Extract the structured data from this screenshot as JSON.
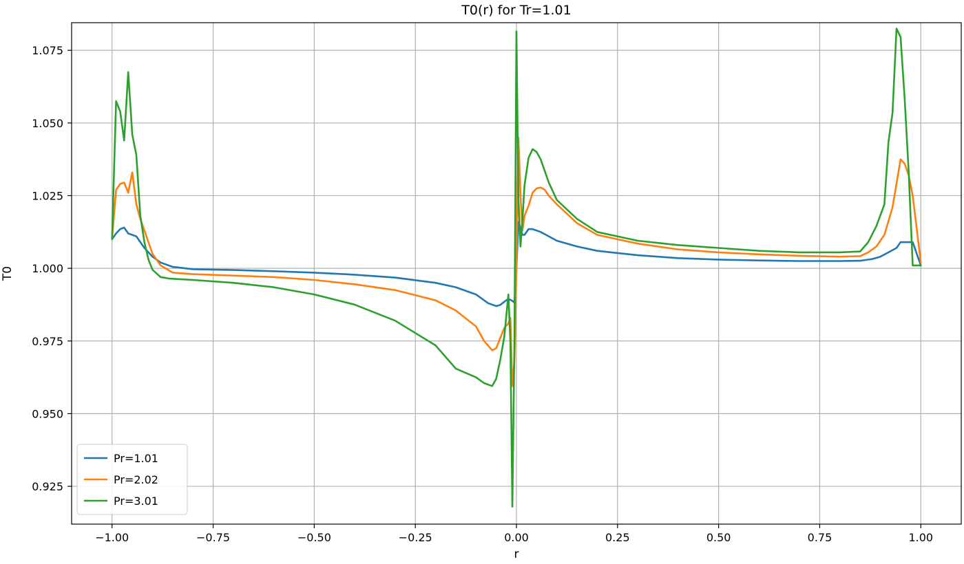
{
  "chart_data": {
    "type": "line",
    "title": "T0(r) for Tr=1.01",
    "xlabel": "r",
    "ylabel": "T0",
    "xlim": [
      -1.1,
      1.1
    ],
    "ylim": [
      0.912,
      1.0845
    ],
    "xticks": [
      -1.0,
      -0.75,
      -0.5,
      -0.25,
      0.0,
      0.25,
      0.5,
      0.75,
      1.0
    ],
    "xtick_labels": [
      "−1.00",
      "−0.75",
      "−0.50",
      "−0.25",
      "0.00",
      "0.25",
      "0.50",
      "0.75",
      "1.00"
    ],
    "yticks": [
      0.925,
      0.95,
      0.975,
      1.0,
      1.025,
      1.05,
      1.075
    ],
    "ytick_labels": [
      "0.925",
      "0.950",
      "0.975",
      "1.000",
      "1.025",
      "1.050",
      "1.075"
    ],
    "grid": true,
    "legend_position": "lower-left",
    "series": [
      {
        "name": "Pr=1.01",
        "color": "#1f77b4",
        "x": [
          -1.0,
          -0.99,
          -0.98,
          -0.97,
          -0.96,
          -0.95,
          -0.94,
          -0.92,
          -0.9,
          -0.88,
          -0.85,
          -0.8,
          -0.7,
          -0.6,
          -0.5,
          -0.4,
          -0.3,
          -0.2,
          -0.15,
          -0.1,
          -0.07,
          -0.05,
          -0.04,
          -0.03,
          -0.02,
          -0.01,
          -0.005,
          0.0,
          0.005,
          0.01,
          0.015,
          0.02,
          0.03,
          0.04,
          0.05,
          0.06,
          0.08,
          0.1,
          0.15,
          0.2,
          0.3,
          0.4,
          0.5,
          0.6,
          0.7,
          0.8,
          0.85,
          0.88,
          0.9,
          0.92,
          0.94,
          0.95,
          0.96,
          0.97,
          0.98,
          1.0
        ],
        "y": [
          1.01,
          1.012,
          1.0135,
          1.014,
          1.012,
          1.0115,
          1.011,
          1.007,
          1.004,
          1.002,
          1.0005,
          0.9997,
          0.9994,
          0.999,
          0.9985,
          0.9978,
          0.9968,
          0.995,
          0.9935,
          0.991,
          0.988,
          0.987,
          0.9874,
          0.9885,
          0.9895,
          0.9888,
          0.9882,
          1.0,
          1.016,
          1.014,
          1.0115,
          1.0115,
          1.0135,
          1.0135,
          1.013,
          1.0125,
          1.011,
          1.0095,
          1.0075,
          1.006,
          1.0045,
          1.0035,
          1.003,
          1.0027,
          1.0025,
          1.0025,
          1.0026,
          1.0032,
          1.004,
          1.0055,
          1.007,
          1.009,
          1.009,
          1.009,
          1.009,
          1.001
        ]
      },
      {
        "name": "Pr=2.02",
        "color": "#ff7f0e",
        "x": [
          -1.0,
          -0.99,
          -0.98,
          -0.97,
          -0.96,
          -0.95,
          -0.94,
          -0.93,
          -0.92,
          -0.9,
          -0.88,
          -0.85,
          -0.8,
          -0.7,
          -0.6,
          -0.5,
          -0.4,
          -0.3,
          -0.2,
          -0.15,
          -0.1,
          -0.08,
          -0.06,
          -0.05,
          -0.04,
          -0.03,
          -0.02,
          -0.015,
          -0.01,
          -0.005,
          0.0,
          0.005,
          0.01,
          0.015,
          0.02,
          0.03,
          0.04,
          0.05,
          0.06,
          0.07,
          0.08,
          0.1,
          0.15,
          0.2,
          0.3,
          0.4,
          0.5,
          0.6,
          0.7,
          0.8,
          0.85,
          0.87,
          0.89,
          0.91,
          0.93,
          0.95,
          0.96,
          0.97,
          0.98,
          1.0
        ],
        "y": [
          1.01,
          1.027,
          1.029,
          1.0295,
          1.026,
          1.033,
          1.022,
          1.017,
          1.013,
          1.005,
          1.001,
          0.9985,
          0.998,
          0.9975,
          0.997,
          0.996,
          0.9945,
          0.9925,
          0.989,
          0.9855,
          0.98,
          0.975,
          0.9718,
          0.9725,
          0.976,
          0.9795,
          0.981,
          0.983,
          0.9595,
          0.968,
          1.0,
          1.045,
          1.025,
          1.013,
          1.018,
          1.0215,
          1.026,
          1.0275,
          1.0278,
          1.027,
          1.025,
          1.022,
          1.0155,
          1.0115,
          1.0085,
          1.0065,
          1.0055,
          1.0048,
          1.0043,
          1.004,
          1.0042,
          1.0055,
          1.0075,
          1.0115,
          1.021,
          1.0375,
          1.036,
          1.032,
          1.025,
          1.002
        ]
      },
      {
        "name": "Pr=3.01",
        "color": "#2ca02c",
        "x": [
          -1.0,
          -0.99,
          -0.98,
          -0.97,
          -0.96,
          -0.95,
          -0.94,
          -0.93,
          -0.92,
          -0.91,
          -0.9,
          -0.88,
          -0.86,
          -0.84,
          -0.8,
          -0.7,
          -0.6,
          -0.5,
          -0.4,
          -0.3,
          -0.2,
          -0.15,
          -0.1,
          -0.08,
          -0.06,
          -0.05,
          -0.04,
          -0.03,
          -0.02,
          -0.015,
          -0.01,
          -0.005,
          0.0,
          0.005,
          0.01,
          0.015,
          0.02,
          0.03,
          0.04,
          0.05,
          0.06,
          0.07,
          0.08,
          0.1,
          0.15,
          0.2,
          0.3,
          0.4,
          0.5,
          0.6,
          0.7,
          0.8,
          0.85,
          0.87,
          0.89,
          0.91,
          0.92,
          0.93,
          0.94,
          0.95,
          0.96,
          0.97,
          0.98,
          1.0
        ],
        "y": [
          1.01,
          1.0575,
          1.054,
          1.044,
          1.0675,
          1.046,
          1.039,
          1.018,
          1.009,
          1.003,
          0.9995,
          0.997,
          0.9965,
          0.9963,
          0.996,
          0.995,
          0.9935,
          0.991,
          0.9875,
          0.982,
          0.9735,
          0.9655,
          0.9625,
          0.9605,
          0.9595,
          0.962,
          0.9685,
          0.9765,
          0.991,
          0.975,
          0.918,
          0.975,
          1.0815,
          1.024,
          1.0075,
          1.017,
          1.0285,
          1.038,
          1.041,
          1.04,
          1.0375,
          1.0335,
          1.0295,
          1.0235,
          1.017,
          1.0125,
          1.0095,
          1.008,
          1.007,
          1.006,
          1.0055,
          1.0055,
          1.0058,
          1.009,
          1.0145,
          1.022,
          1.0435,
          1.0535,
          1.0825,
          1.0795,
          1.0585,
          1.033,
          1.001,
          1.001
        ]
      }
    ]
  }
}
